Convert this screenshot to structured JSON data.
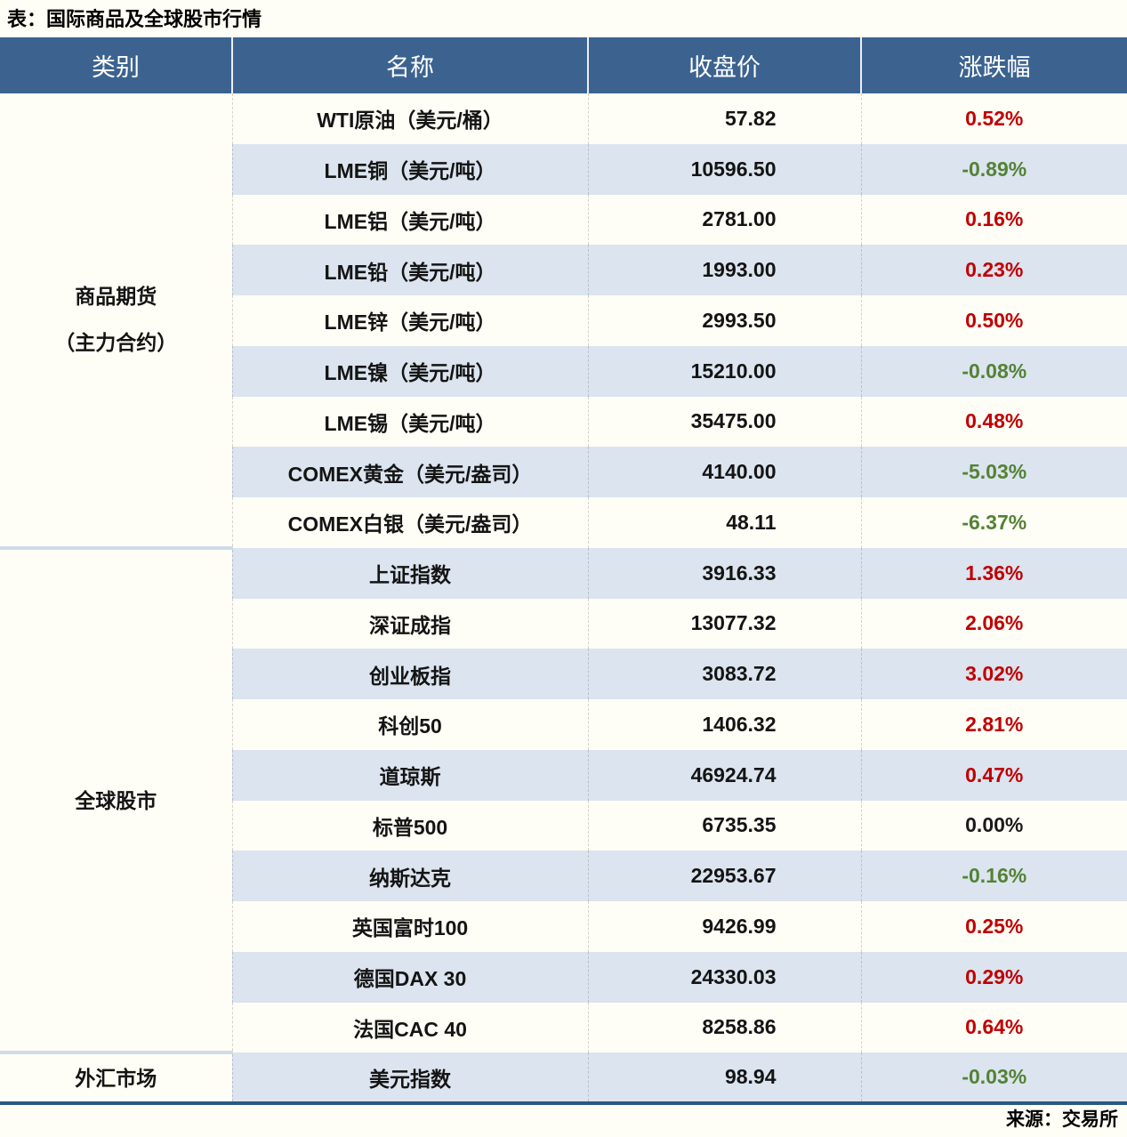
{
  "title": "表：国际商品及全球股市行情",
  "source": "来源：交易所",
  "colors": {
    "up": "#C00000",
    "down": "#548235",
    "flat": "#1A1A1A",
    "header_bg": "#3C6390",
    "alt_row_bg": "#DBE4EF",
    "bottom_border": "#2B5884",
    "category_separator": "#CEDBEA"
  },
  "chart_data": {
    "type": "table",
    "columns": [
      "类别",
      "名称",
      "收盘价",
      "涨跌幅"
    ],
    "groups": [
      {
        "category_lines": [
          "商品期货",
          "（主力合约）"
        ],
        "rows": [
          {
            "name": "WTI原油（美元/桶）",
            "close": "57.82",
            "change": "0.52%",
            "dir": "up"
          },
          {
            "name": "LME铜（美元/吨）",
            "close": "10596.50",
            "change": "-0.89%",
            "dir": "down"
          },
          {
            "name": "LME铝（美元/吨）",
            "close": "2781.00",
            "change": "0.16%",
            "dir": "up"
          },
          {
            "name": "LME铅（美元/吨）",
            "close": "1993.00",
            "change": "0.23%",
            "dir": "up"
          },
          {
            "name": "LME锌（美元/吨）",
            "close": "2993.50",
            "change": "0.50%",
            "dir": "up"
          },
          {
            "name": "LME镍（美元/吨）",
            "close": "15210.00",
            "change": "-0.08%",
            "dir": "down"
          },
          {
            "name": "LME锡（美元/吨）",
            "close": "35475.00",
            "change": "0.48%",
            "dir": "up"
          },
          {
            "name": "COMEX黄金（美元/盎司）",
            "close": "4140.00",
            "change": "-5.03%",
            "dir": "down"
          },
          {
            "name": "COMEX白银（美元/盎司）",
            "close": "48.11",
            "change": "-6.37%",
            "dir": "down"
          }
        ]
      },
      {
        "category_lines": [
          "全球股市"
        ],
        "rows": [
          {
            "name": "上证指数",
            "close": "3916.33",
            "change": "1.36%",
            "dir": "up"
          },
          {
            "name": "深证成指",
            "close": "13077.32",
            "change": "2.06%",
            "dir": "up"
          },
          {
            "name": "创业板指",
            "close": "3083.72",
            "change": "3.02%",
            "dir": "up"
          },
          {
            "name": "科创50",
            "close": "1406.32",
            "change": "2.81%",
            "dir": "up"
          },
          {
            "name": "道琼斯",
            "close": "46924.74",
            "change": "0.47%",
            "dir": "up"
          },
          {
            "name": "标普500",
            "close": "6735.35",
            "change": "0.00%",
            "dir": "flat"
          },
          {
            "name": "纳斯达克",
            "close": "22953.67",
            "change": "-0.16%",
            "dir": "down"
          },
          {
            "name": "英国富时100",
            "close": "9426.99",
            "change": "0.25%",
            "dir": "up"
          },
          {
            "name": "德国DAX 30",
            "close": "24330.03",
            "change": "0.29%",
            "dir": "up"
          },
          {
            "name": "法国CAC 40",
            "close": "8258.86",
            "change": "0.64%",
            "dir": "up"
          }
        ]
      },
      {
        "category_lines": [
          "外汇市场"
        ],
        "rows": [
          {
            "name": "美元指数",
            "close": "98.94",
            "change": "-0.03%",
            "dir": "down"
          }
        ]
      }
    ]
  }
}
